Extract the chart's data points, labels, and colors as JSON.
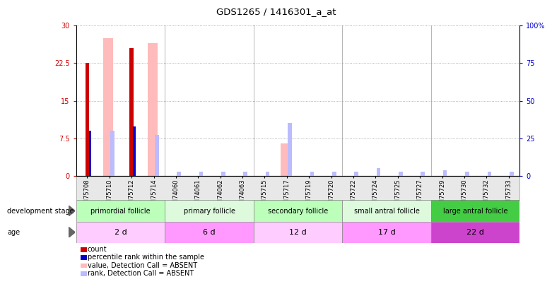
{
  "title": "GDS1265 / 1416301_a_at",
  "samples": [
    "GSM75708",
    "GSM75710",
    "GSM75712",
    "GSM75714",
    "GSM74060",
    "GSM74061",
    "GSM74062",
    "GSM74063",
    "GSM75715",
    "GSM75717",
    "GSM75719",
    "GSM75720",
    "GSM75722",
    "GSM75724",
    "GSM75725",
    "GSM75727",
    "GSM75729",
    "GSM75730",
    "GSM75732",
    "GSM75733"
  ],
  "count_values": [
    22.5,
    0,
    25.5,
    0,
    0,
    0,
    0,
    0,
    0,
    0,
    0,
    0,
    0,
    0,
    0,
    0,
    0,
    0,
    0,
    0
  ],
  "rank_values": [
    30.0,
    0,
    33.0,
    0,
    0,
    0,
    0,
    0,
    0,
    0,
    0,
    0,
    0,
    0,
    0,
    0,
    0,
    0,
    0,
    0
  ],
  "absent_value_values": [
    0,
    27.5,
    0,
    26.5,
    0,
    0,
    0,
    0,
    0,
    6.5,
    0,
    0,
    0,
    0,
    0,
    0,
    0,
    0,
    0,
    0
  ],
  "absent_rank_values": [
    0,
    30.0,
    0,
    27.0,
    2.8,
    2.8,
    2.8,
    2.8,
    2.8,
    35.0,
    2.8,
    2.8,
    2.8,
    5.0,
    2.8,
    2.8,
    3.5,
    2.8,
    2.8,
    2.8
  ],
  "ylim": [
    0,
    30
  ],
  "ylim_right": [
    0,
    100
  ],
  "yticks_left": [
    0,
    7.5,
    15,
    22.5,
    30
  ],
  "yticks_right": [
    0,
    25,
    50,
    75,
    100
  ],
  "ytick_labels_left": [
    "0",
    "7.5",
    "15",
    "22.5",
    "30"
  ],
  "ytick_labels_right": [
    "0",
    "25",
    "50",
    "75",
    "100%"
  ],
  "groups": [
    {
      "name": "primordial follicle",
      "start": 0,
      "end": 4,
      "color": "#bbffbb"
    },
    {
      "name": "primary follicle",
      "start": 4,
      "end": 8,
      "color": "#ddfadd"
    },
    {
      "name": "secondary follicle",
      "start": 8,
      "end": 12,
      "color": "#bbffbb"
    },
    {
      "name": "small antral follicle",
      "start": 12,
      "end": 16,
      "color": "#ddfadd"
    },
    {
      "name": "large antral follicle",
      "start": 16,
      "end": 20,
      "color": "#44cc44"
    }
  ],
  "ages": [
    {
      "label": "2 d",
      "start": 0,
      "end": 4,
      "color": "#ffccff"
    },
    {
      "label": "6 d",
      "start": 4,
      "end": 8,
      "color": "#ff99ff"
    },
    {
      "label": "12 d",
      "start": 8,
      "end": 12,
      "color": "#ffccff"
    },
    {
      "label": "17 d",
      "start": 12,
      "end": 16,
      "color": "#ff99ff"
    },
    {
      "label": "22 d",
      "start": 16,
      "end": 20,
      "color": "#cc44cc"
    }
  ],
  "count_color": "#cc0000",
  "rank_color": "#0000cc",
  "absent_value_color": "#ffbbbb",
  "absent_rank_color": "#bbbbff",
  "left_axis_color": "#cc0000",
  "right_axis_color": "#0000cc",
  "grid_color": "#999999"
}
